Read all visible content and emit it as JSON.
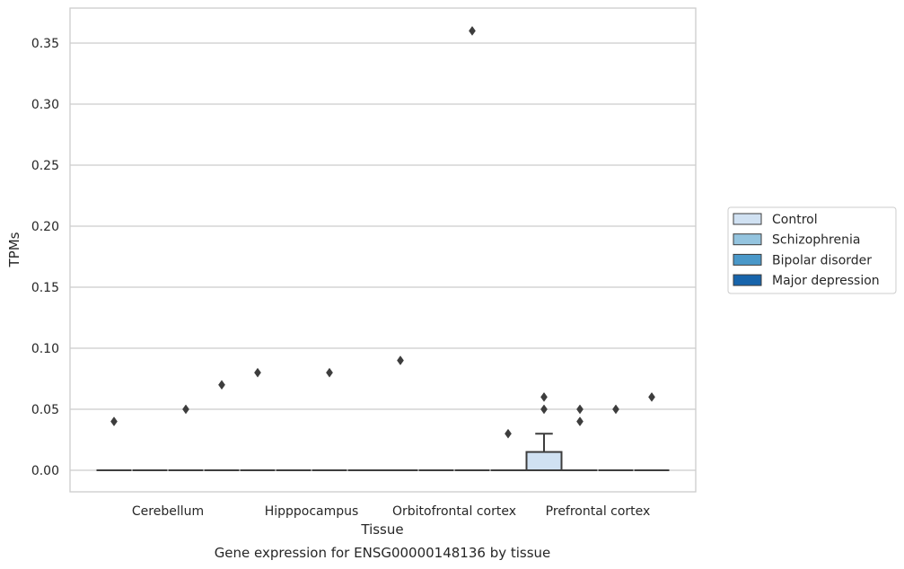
{
  "chart_data": {
    "type": "box",
    "caption": "Gene expression for ENSG00000148136 by tissue",
    "xlabel": "Tissue",
    "ylabel": "TPMs",
    "ylim": [
      -0.018,
      0.378
    ],
    "yticks": [
      0.0,
      0.05,
      0.1,
      0.15,
      0.2,
      0.25,
      0.3,
      0.35
    ],
    "ytick_labels": [
      "0.00",
      "0.05",
      "0.10",
      "0.15",
      "0.20",
      "0.25",
      "0.30",
      "0.35"
    ],
    "grid": "horizontal",
    "legend_position": "right",
    "categories": [
      "Cerebellum",
      "Hipppocampus",
      "Orbitofrontal cortex",
      "Prefrontal cortex"
    ],
    "series": [
      {
        "name": "Control",
        "color": "#d0e1f2",
        "boxes": [
          {
            "q1": 0,
            "median": 0,
            "q3": 0,
            "whisker_low": 0,
            "whisker_high": 0,
            "outliers": [
              0.04
            ]
          },
          {
            "q1": 0,
            "median": 0,
            "q3": 0,
            "whisker_low": 0,
            "whisker_high": 0,
            "outliers": [
              0.08
            ]
          },
          {
            "q1": 0,
            "median": 0,
            "q3": 0,
            "whisker_low": 0,
            "whisker_high": 0,
            "outliers": [
              0.09
            ]
          },
          {
            "q1": 0,
            "median": 0,
            "q3": 0.015,
            "whisker_low": 0,
            "whisker_high": 0.03,
            "outliers": [
              0.05,
              0.06
            ]
          }
        ]
      },
      {
        "name": "Schizophrenia",
        "color": "#94c4df",
        "boxes": [
          {
            "q1": 0,
            "median": 0,
            "q3": 0,
            "whisker_low": 0,
            "whisker_high": 0,
            "outliers": []
          },
          {
            "q1": 0,
            "median": 0,
            "q3": 0,
            "whisker_low": 0,
            "whisker_high": 0,
            "outliers": []
          },
          {
            "q1": 0,
            "median": 0,
            "q3": 0,
            "whisker_low": 0,
            "whisker_high": 0,
            "outliers": []
          },
          {
            "q1": 0,
            "median": 0,
            "q3": 0,
            "whisker_low": 0,
            "whisker_high": 0,
            "outliers": [
              0.04,
              0.05
            ]
          }
        ]
      },
      {
        "name": "Bipolar disorder",
        "color": "#4a98c9",
        "boxes": [
          {
            "q1": 0,
            "median": 0,
            "q3": 0,
            "whisker_low": 0,
            "whisker_high": 0,
            "outliers": [
              0.05
            ]
          },
          {
            "q1": 0,
            "median": 0,
            "q3": 0,
            "whisker_low": 0,
            "whisker_high": 0,
            "outliers": [
              0.08
            ]
          },
          {
            "q1": 0,
            "median": 0,
            "q3": 0,
            "whisker_low": 0,
            "whisker_high": 0,
            "outliers": [
              0.36
            ]
          },
          {
            "q1": 0,
            "median": 0,
            "q3": 0,
            "whisker_low": 0,
            "whisker_high": 0,
            "outliers": [
              0.05
            ]
          }
        ]
      },
      {
        "name": "Major depression",
        "color": "#1764ab",
        "boxes": [
          {
            "q1": 0,
            "median": 0,
            "q3": 0,
            "whisker_low": 0,
            "whisker_high": 0,
            "outliers": [
              0.07
            ]
          },
          {
            "q1": 0,
            "median": 0,
            "q3": 0,
            "whisker_low": 0,
            "whisker_high": 0,
            "outliers": []
          },
          {
            "q1": 0,
            "median": 0,
            "q3": 0,
            "whisker_low": 0,
            "whisker_high": 0,
            "outliers": [
              0.03
            ]
          },
          {
            "q1": 0,
            "median": 0,
            "q3": 0,
            "whisker_low": 0,
            "whisker_high": 0,
            "outliers": [
              0.06
            ]
          }
        ]
      }
    ]
  }
}
